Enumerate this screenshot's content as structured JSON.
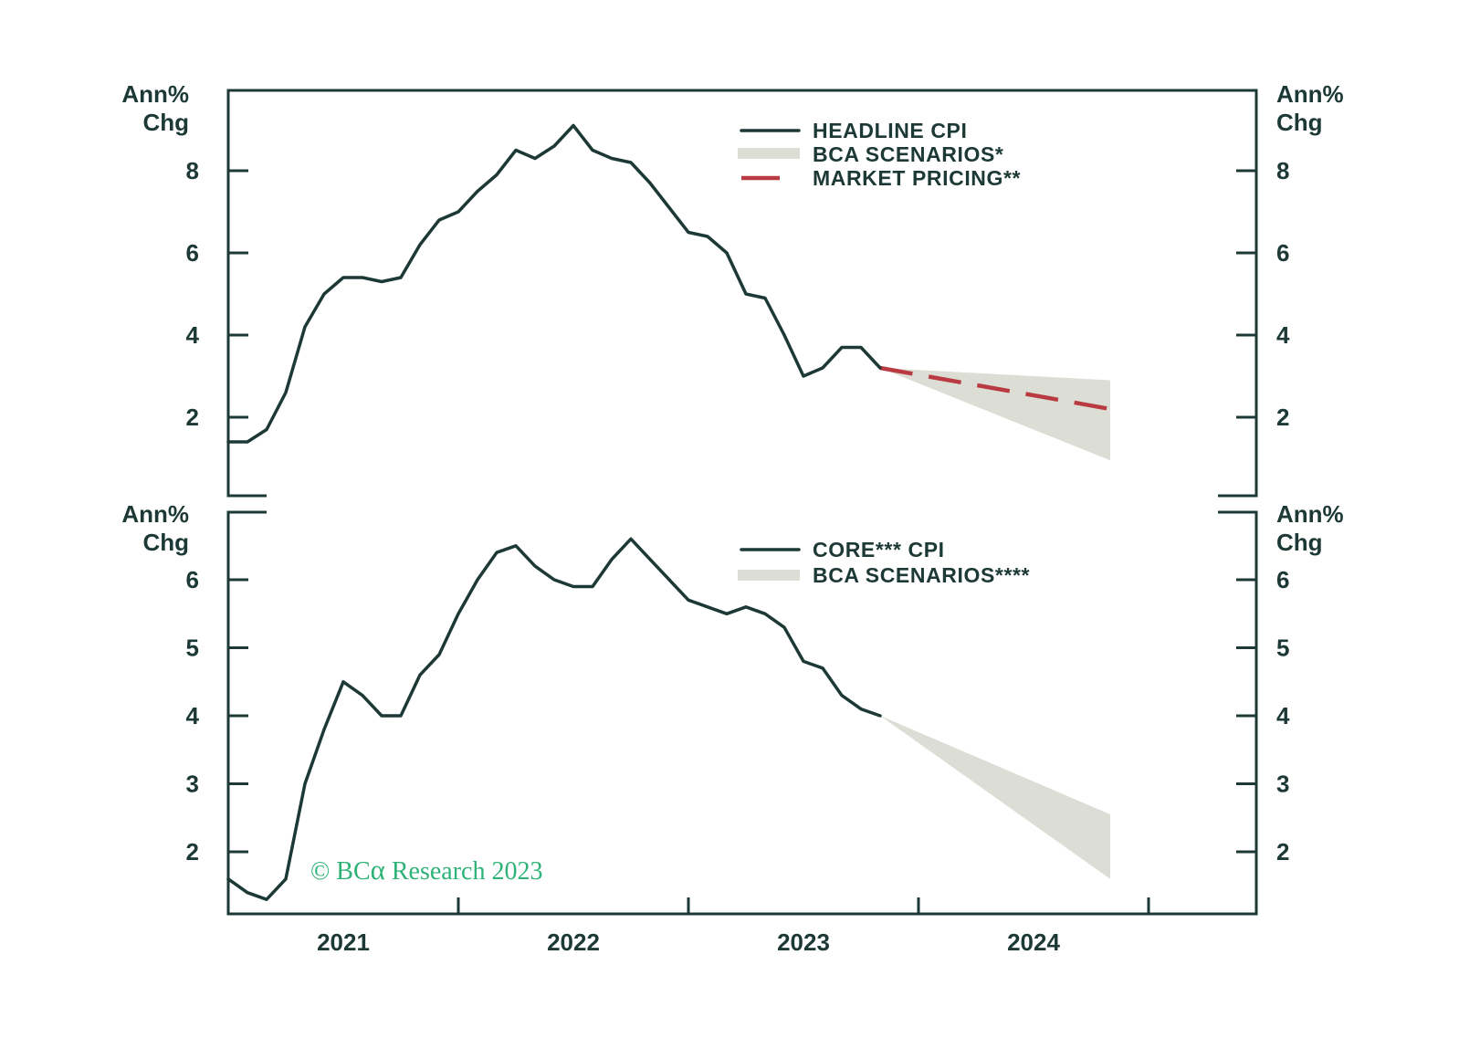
{
  "figure": {
    "background": "#ffffff"
  },
  "colors": {
    "ink": "#1c3935",
    "red": "#b93b41",
    "band": "#dcddd4",
    "green": "#2eb277"
  },
  "axis_labels": {
    "line1": "Ann%",
    "line2": "Chg"
  },
  "x_axis": {
    "year_labels": [
      "2021",
      "2022",
      "2023",
      "2024"
    ]
  },
  "watermark": {
    "text": "© BCα Research 2023",
    "part_bc": "© BC",
    "part_alpha": "α",
    "part_rest": " Research 2023"
  },
  "chart_data": [
    {
      "type": "line",
      "panel": "top",
      "legend_position": "inside-top-right",
      "legend": [
        {
          "label": "HEADLINE CPI",
          "swatch": "line",
          "color": "#1c3935"
        },
        {
          "label": "BCA SCENARIOS*",
          "swatch": "band",
          "color": "#dcddd4"
        },
        {
          "label": "MARKET PRICING**",
          "swatch": "dash",
          "color": "#b93b41"
        }
      ],
      "x_start": "2020-12",
      "x_end": "2023-10",
      "frequency": "monthly",
      "series": [
        {
          "name": "HEADLINE CPI",
          "values": [
            1.4,
            1.4,
            1.7,
            2.6,
            4.2,
            5.0,
            5.4,
            5.4,
            5.3,
            5.4,
            6.2,
            6.8,
            7.0,
            7.5,
            7.9,
            8.5,
            8.3,
            8.6,
            9.1,
            8.5,
            8.3,
            8.2,
            7.7,
            7.1,
            6.5,
            6.4,
            6.0,
            5.0,
            4.9,
            4.0,
            3.0,
            3.2,
            3.7,
            3.7,
            3.2
          ]
        }
      ],
      "scenario_band": {
        "x": [
          "2023-10",
          "2024-10"
        ],
        "upper": [
          3.2,
          2.9
        ],
        "lower": [
          3.2,
          0.95
        ]
      },
      "market_pricing": {
        "x": [
          "2023-10",
          "2024-10"
        ],
        "values": [
          3.2,
          2.2
        ]
      },
      "yticks": [
        8,
        6,
        4,
        2
      ],
      "ylim": [
        0,
        10
      ],
      "grid": false
    },
    {
      "type": "line",
      "panel": "bottom",
      "legend_position": "inside-top-right",
      "legend": [
        {
          "label": "CORE*** CPI",
          "swatch": "line",
          "color": "#1c3935"
        },
        {
          "label": "BCA SCENARIOS****",
          "swatch": "band",
          "color": "#dcddd4"
        }
      ],
      "x_start": "2020-12",
      "x_end": "2023-10",
      "frequency": "monthly",
      "series": [
        {
          "name": "CORE CPI",
          "values": [
            1.6,
            1.4,
            1.3,
            1.6,
            3.0,
            3.8,
            4.5,
            4.3,
            4.0,
            4.0,
            4.6,
            4.9,
            5.5,
            6.0,
            6.4,
            6.5,
            6.2,
            6.0,
            5.9,
            5.9,
            6.3,
            6.6,
            6.3,
            6.0,
            5.7,
            5.6,
            5.5,
            5.6,
            5.5,
            5.3,
            4.8,
            4.7,
            4.3,
            4.1,
            4.0
          ]
        }
      ],
      "scenario_band": {
        "x": [
          "2023-10",
          "2024-10"
        ],
        "upper": [
          4.0,
          2.55
        ],
        "lower": [
          4.0,
          1.6
        ]
      },
      "yticks": [
        6,
        5,
        4,
        3,
        2
      ],
      "ylim": [
        1,
        7
      ],
      "grid": false
    }
  ]
}
